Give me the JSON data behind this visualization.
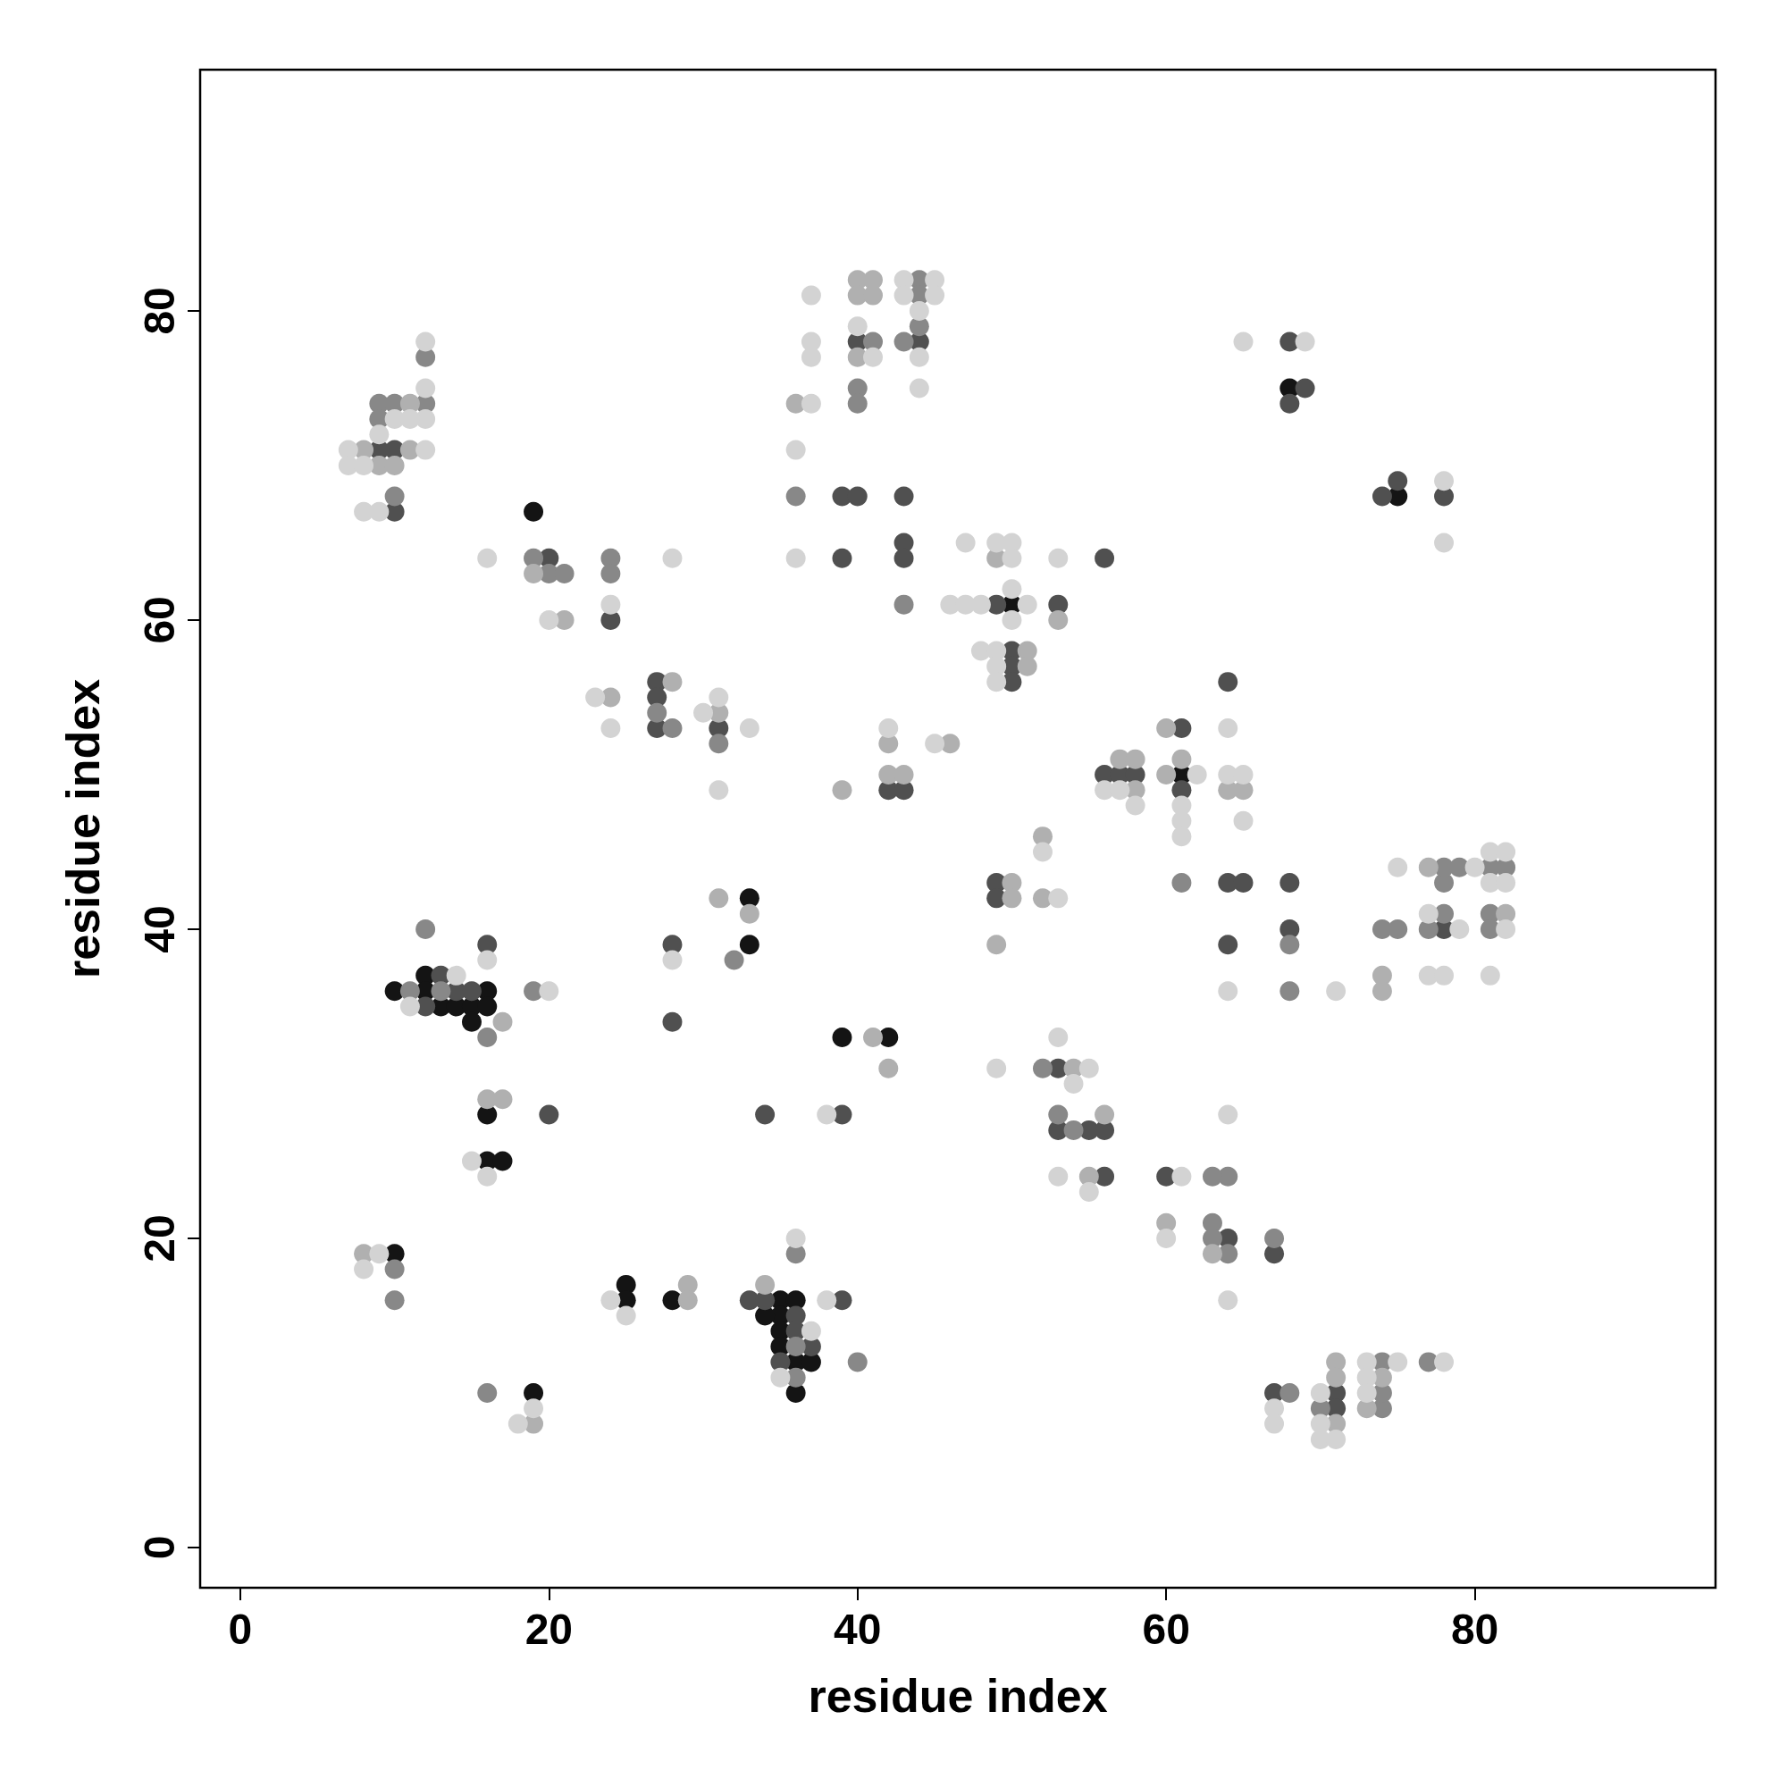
{
  "chart_data": {
    "type": "scatter",
    "xlabel": "residue index",
    "ylabel": "residue index",
    "xlim": [
      -2.6,
      95.6
    ],
    "ylim": [
      -2.6,
      95.6
    ],
    "xticks": [
      0,
      20,
      40,
      60,
      80
    ],
    "yticks": [
      0,
      20,
      40,
      60,
      80
    ],
    "grid": false,
    "marker": "circle",
    "series": [
      {
        "color": "#141414",
        "x": [
          19,
          10,
          12,
          12,
          16,
          13,
          14,
          15,
          16,
          15,
          33,
          33,
          39,
          42,
          16,
          16,
          17,
          25,
          25,
          35,
          36,
          35,
          35,
          35,
          36,
          37,
          36,
          50,
          61,
          68,
          75,
          19,
          10,
          28,
          34
        ],
        "values": [
          67,
          36,
          37,
          36,
          36,
          35,
          35,
          35,
          35,
          34,
          42,
          39,
          33,
          33,
          28,
          25,
          25,
          17,
          16,
          16,
          16,
          15,
          14,
          13,
          12,
          12,
          10,
          61,
          50,
          75,
          68,
          10,
          19,
          16,
          15
        ]
      },
      {
        "color": "#505050",
        "x": [
          10,
          9,
          10,
          20,
          24,
          27,
          27,
          27,
          31,
          42,
          43,
          40,
          44,
          39,
          40,
          43,
          43,
          39,
          43,
          49,
          53,
          50,
          50,
          50,
          56,
          57,
          58,
          61,
          61,
          68,
          68,
          69,
          74,
          78,
          75,
          56,
          64,
          49,
          49,
          64,
          65,
          68,
          64,
          68,
          78,
          13,
          14,
          15,
          12,
          16,
          28,
          28,
          20,
          34,
          39,
          33,
          34,
          36,
          36,
          37,
          35,
          39,
          53,
          53,
          55,
          56,
          56,
          60,
          64,
          67,
          67,
          71,
          71
        ],
        "values": [
          71,
          71,
          67,
          64,
          60,
          56,
          55,
          53,
          53,
          49,
          49,
          78,
          78,
          68,
          68,
          68,
          65,
          64,
          64,
          61,
          61,
          58,
          57,
          56,
          50,
          50,
          50,
          49,
          53,
          78,
          74,
          75,
          68,
          68,
          69,
          64,
          56,
          43,
          42,
          43,
          43,
          43,
          39,
          40,
          40,
          37,
          36,
          36,
          35,
          39,
          39,
          34,
          28,
          28,
          28,
          16,
          16,
          15,
          14,
          13,
          12,
          16,
          31,
          27,
          27,
          27,
          24,
          24,
          20,
          19,
          10,
          10,
          9
        ]
      },
      {
        "color": "#888888",
        "x": [
          12,
          12,
          9,
          10,
          9,
          10,
          19,
          20,
          21,
          24,
          24,
          27,
          28,
          31,
          41,
          43,
          44,
          44,
          44,
          40,
          40,
          36,
          43,
          61,
          64,
          63,
          63,
          63,
          64,
          67,
          68,
          70,
          74,
          74,
          74,
          77,
          74,
          75,
          77,
          78,
          81,
          81,
          78,
          78,
          79,
          81,
          82,
          68,
          68,
          12,
          11,
          13,
          19,
          16,
          32,
          10,
          10,
          16,
          36,
          36,
          36,
          40,
          52,
          54,
          53
        ],
        "values": [
          77,
          74,
          74,
          74,
          73,
          68,
          64,
          63,
          63,
          64,
          63,
          54,
          53,
          52,
          78,
          78,
          82,
          81,
          79,
          75,
          74,
          68,
          61,
          43,
          24,
          24,
          21,
          20,
          19,
          20,
          10,
          9,
          9,
          10,
          12,
          12,
          40,
          40,
          40,
          41,
          41,
          40,
          43,
          44,
          44,
          44,
          44,
          39,
          36,
          40,
          36,
          36,
          36,
          33,
          38,
          18,
          16,
          10,
          19,
          13,
          11,
          12,
          31,
          27,
          28
        ]
      },
      {
        "color": "#b0b0b0",
        "x": [
          8,
          11,
          9,
          10,
          11,
          40,
          41,
          40,
          41,
          36,
          40,
          19,
          21,
          24,
          28,
          31,
          42,
          42,
          43,
          39,
          46,
          49,
          51,
          51,
          53,
          57,
          58,
          61,
          60,
          60,
          58,
          64,
          65,
          50,
          50,
          52,
          42,
          41,
          33,
          31,
          49,
          17,
          16,
          17,
          8,
          19,
          29,
          29,
          34,
          54,
          56,
          55,
          60,
          63,
          71,
          71,
          74,
          71,
          73,
          77,
          82,
          74,
          74,
          52
        ],
        "values": [
          71,
          71,
          70,
          70,
          74,
          82,
          82,
          81,
          81,
          74,
          77,
          63,
          60,
          55,
          56,
          54,
          52,
          50,
          50,
          49,
          52,
          64,
          58,
          57,
          60,
          51,
          51,
          51,
          53,
          50,
          49,
          49,
          49,
          43,
          42,
          42,
          31,
          33,
          41,
          42,
          39,
          34,
          29,
          29,
          19,
          8,
          17,
          16,
          17,
          31,
          28,
          24,
          21,
          19,
          12,
          11,
          11,
          8,
          9,
          44,
          41,
          37,
          36,
          46
        ]
      },
      {
        "color": "#d3d3d3",
        "x": [
          12,
          12,
          12,
          12,
          10,
          11,
          9,
          7,
          7,
          8,
          8,
          9,
          16,
          28,
          24,
          20,
          23,
          31,
          30,
          24,
          33,
          31,
          42,
          45,
          37,
          40,
          43,
          45,
          43,
          45,
          44,
          37,
          37,
          41,
          44,
          44,
          37,
          36,
          36,
          47,
          49,
          50,
          50,
          53,
          50,
          46,
          47,
          48,
          51,
          50,
          48,
          49,
          49,
          49,
          64,
          62,
          64,
          65,
          56,
          57,
          58,
          61,
          61,
          61,
          65,
          52,
          53,
          65,
          69,
          78,
          78,
          75,
          80,
          81,
          82,
          79,
          82,
          77,
          78,
          81,
          64,
          71,
          53,
          49,
          55,
          54,
          64,
          53,
          61,
          55,
          60,
          64,
          73,
          75,
          78,
          73,
          70,
          73,
          67,
          67,
          70,
          70,
          71,
          9,
          8,
          14,
          11,
          16,
          20,
          16,
          15,
          28,
          38,
          24,
          25,
          38,
          37,
          35,
          19,
          18,
          36,
          81,
          82,
          77
        ],
        "values": [
          78,
          75,
          73,
          71,
          73,
          73,
          72,
          71,
          70,
          70,
          67,
          67,
          64,
          64,
          61,
          60,
          55,
          55,
          54,
          53,
          53,
          49,
          53,
          52,
          81,
          79,
          82,
          82,
          81,
          81,
          80,
          78,
          77,
          77,
          77,
          75,
          74,
          71,
          64,
          65,
          65,
          65,
          64,
          64,
          62,
          61,
          61,
          61,
          61,
          60,
          58,
          58,
          57,
          56,
          53,
          50,
          50,
          50,
          49,
          49,
          48,
          48,
          47,
          46,
          47,
          45,
          42,
          78,
          78,
          69,
          65,
          44,
          44,
          45,
          45,
          40,
          40,
          37,
          37,
          37,
          36,
          36,
          33,
          31,
          31,
          30,
          28,
          24,
          24,
          23,
          20,
          16,
          12,
          12,
          12,
          11,
          10,
          10,
          9,
          8,
          8,
          7,
          7,
          19,
          18,
          37,
          35,
          38,
          36,
          24,
          25,
          38,
          28,
          16,
          15,
          16,
          14,
          11,
          9,
          8,
          20,
          43,
          43,
          41
        ]
      }
    ]
  }
}
